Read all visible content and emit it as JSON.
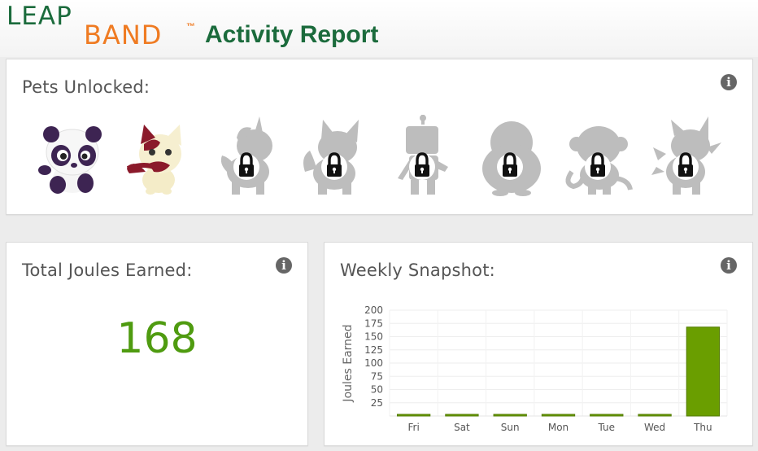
{
  "header": {
    "logo_leap": "LEAP",
    "logo_band": "BAND",
    "logo_tm": "™",
    "report_title": "Activity Report"
  },
  "pets_panel": {
    "title": "Pets Unlocked:",
    "info_icon": "info-icon",
    "pets": [
      {
        "name": "panda",
        "locked": false
      },
      {
        "name": "cat",
        "locked": false
      },
      {
        "name": "unicorn",
        "locked": true
      },
      {
        "name": "dog",
        "locked": true
      },
      {
        "name": "robot",
        "locked": true
      },
      {
        "name": "penguin",
        "locked": true
      },
      {
        "name": "monkey",
        "locked": true
      },
      {
        "name": "dragon",
        "locked": true
      }
    ]
  },
  "joules_panel": {
    "title": "Total Joules Earned:",
    "value": "168",
    "value_color": "#4f9b10"
  },
  "weekly_panel": {
    "title": "Weekly Snapshot:"
  },
  "chart_data": {
    "type": "bar",
    "title": "",
    "xlabel": "",
    "ylabel": "Joules Earned",
    "categories": [
      "Fri",
      "Sat",
      "Sun",
      "Mon",
      "Tue",
      "Wed",
      "Thu"
    ],
    "values": [
      0,
      0,
      0,
      0,
      0,
      0,
      168
    ],
    "ylim": [
      0,
      200
    ],
    "yticks": [
      25,
      50,
      75,
      100,
      125,
      150,
      175,
      200
    ],
    "grid": true,
    "bar_color": "#6a9e00",
    "legend": "none"
  },
  "colors": {
    "brand_green": "#1b6b3c",
    "brand_orange": "#ef7b22",
    "locked_gray": "#bdbdbd"
  }
}
